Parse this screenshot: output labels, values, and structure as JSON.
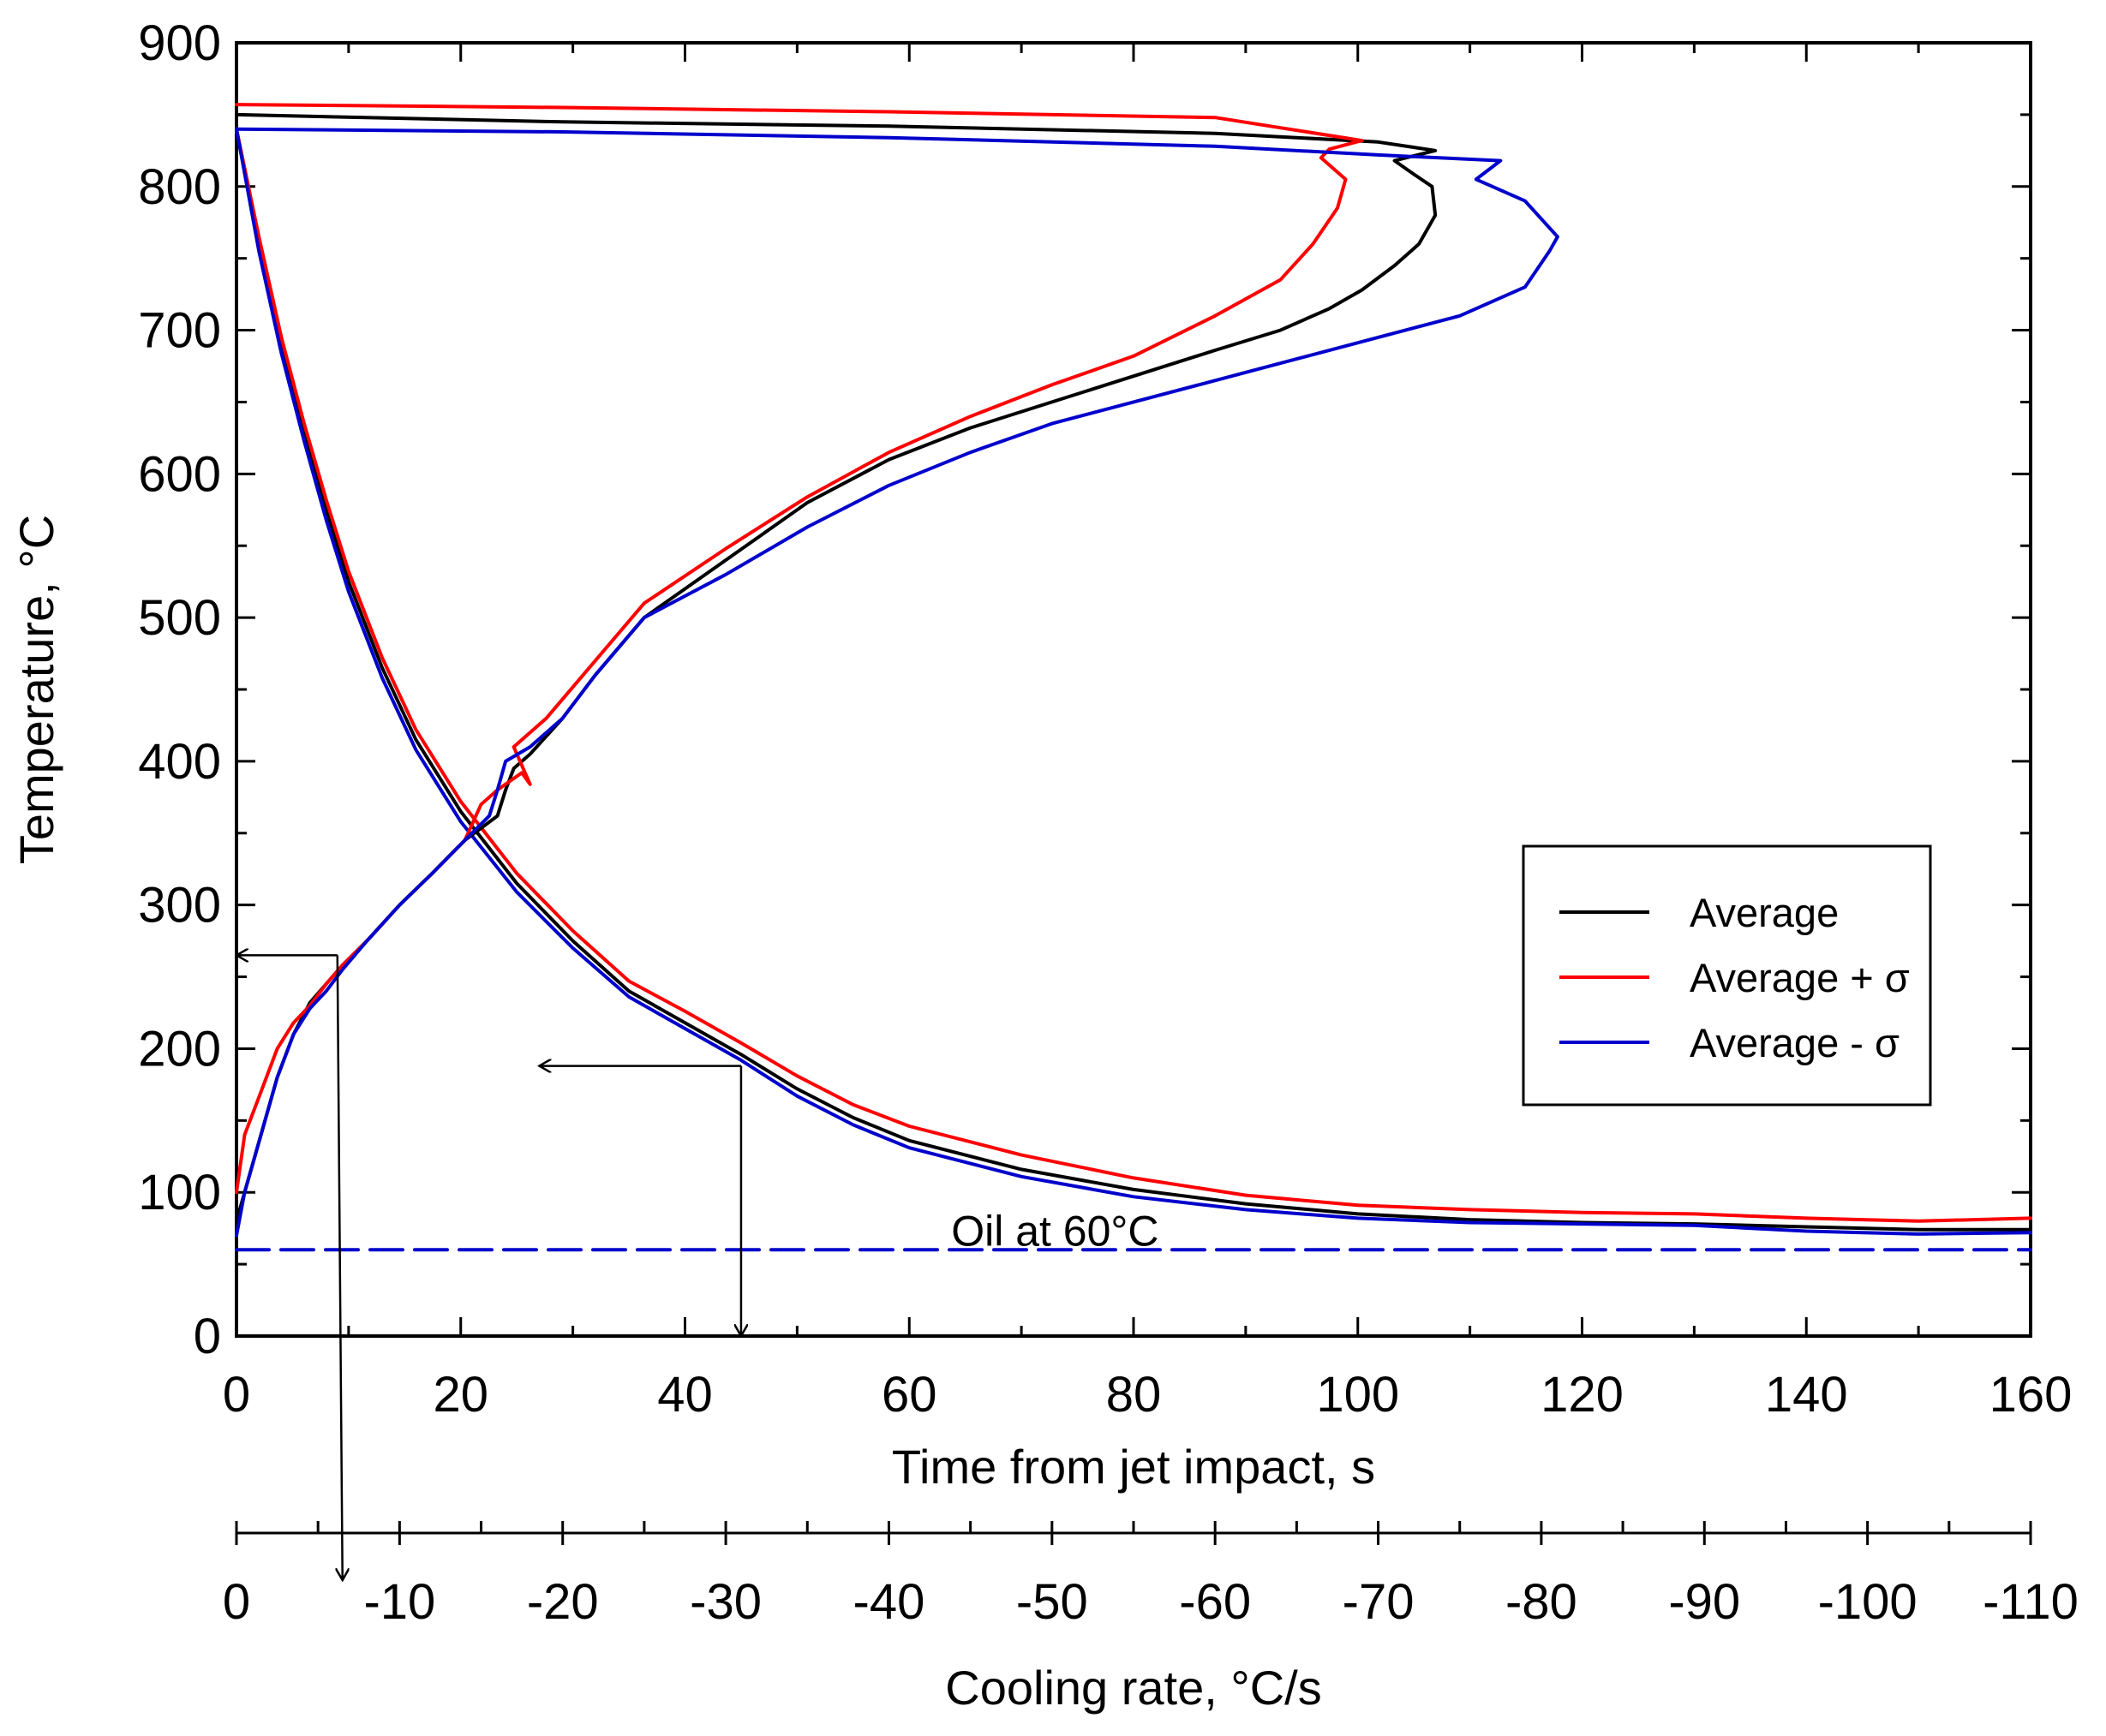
{
  "chart_data": {
    "type": "line",
    "title": "",
    "xlabel": "Time from jet impact, s",
    "x2label": "Cooling rate, °C/s",
    "ylabel": "Temperature, °C",
    "xlim": [
      0,
      160
    ],
    "x2lim": [
      0,
      -110
    ],
    "ylim": [
      0,
      900
    ],
    "x_ticks": [
      0,
      20,
      40,
      60,
      80,
      100,
      120,
      140,
      160
    ],
    "x2_ticks": [
      0,
      -10,
      -20,
      -30,
      -40,
      -50,
      -60,
      -70,
      -80,
      -90,
      -100,
      -110
    ],
    "y_ticks": [
      0,
      100,
      200,
      300,
      400,
      500,
      600,
      700,
      800,
      900
    ],
    "x_tick_labels": [
      "0",
      "20",
      "40",
      "60",
      "80",
      "100",
      "120",
      "140",
      "160"
    ],
    "x2_tick_labels": [
      "0",
      "-10",
      "-20",
      "-30",
      "-40",
      "-50",
      "-60",
      "-70",
      "-80",
      "-90",
      "-100",
      "-110"
    ],
    "y_tick_labels": [
      "0",
      "100",
      "200",
      "300",
      "400",
      "500",
      "600",
      "700",
      "800",
      "900"
    ],
    "grid": false,
    "legend_position": "right",
    "series": [
      {
        "name": "Average",
        "color": "#000000",
        "kind": "temperature-time",
        "x": [
          0,
          2,
          4,
          6,
          8,
          10,
          13,
          16,
          20,
          25,
          30,
          35,
          40,
          45,
          50,
          55,
          60,
          70,
          80,
          90,
          100,
          110,
          120,
          130,
          140,
          150,
          160
        ],
        "y": [
          840,
          760,
          690,
          630,
          575,
          525,
          465,
          415,
          365,
          315,
          275,
          240,
          218,
          196,
          172,
          152,
          136,
          116,
          102,
          92,
          85,
          81,
          79,
          78,
          76,
          74,
          74
        ]
      },
      {
        "name": "Average + σ",
        "color": "#ff0000",
        "kind": "temperature-time",
        "x": [
          0,
          2,
          4,
          6,
          8,
          10,
          13,
          16,
          20,
          25,
          30,
          35,
          40,
          45,
          50,
          55,
          60,
          70,
          80,
          90,
          100,
          110,
          120,
          130,
          140,
          150,
          160
        ],
        "y": [
          840,
          765,
          695,
          636,
          582,
          532,
          472,
          422,
          372,
          322,
          282,
          247,
          226,
          204,
          181,
          161,
          146,
          126,
          110,
          98,
          91,
          88,
          86,
          85,
          82,
          80,
          82
        ]
      },
      {
        "name": "Average - σ",
        "color": "#0000cc",
        "kind": "temperature-time",
        "x": [
          0,
          2,
          4,
          6,
          8,
          10,
          13,
          16,
          20,
          25,
          30,
          35,
          40,
          45,
          50,
          55,
          60,
          70,
          80,
          90,
          100,
          110,
          120,
          130,
          140,
          150,
          160
        ],
        "y": [
          840,
          755,
          684,
          624,
          568,
          518,
          458,
          408,
          358,
          309,
          270,
          236,
          214,
          192,
          167,
          147,
          131,
          111,
          97,
          88,
          82,
          79,
          78,
          77,
          73,
          71,
          72
        ]
      },
      {
        "name": "Average",
        "color": "#000000",
        "kind": "temperature-cooling-rate",
        "x": [
          0,
          -0.5,
          -1.5,
          -2.5,
          -3.5,
          -4.5,
          -5.5,
          -6.5,
          -8,
          -10,
          -12,
          -14,
          -16,
          -16.5,
          -17,
          -18,
          -20,
          -22,
          -25,
          -30,
          -35,
          -40,
          -45,
          -50,
          -55,
          -60,
          -64,
          -67,
          -69,
          -71,
          -72.5,
          -73.5,
          -73.3,
          -72,
          -71,
          -73.5,
          -70,
          -60,
          -40,
          -20,
          0
        ],
        "y": [
          80,
          100,
          140,
          180,
          210,
          232,
          245,
          258,
          275,
          300,
          322,
          345,
          362,
          380,
          395,
          405,
          430,
          460,
          500,
          540,
          580,
          610,
          632,
          650,
          668,
          686,
          700,
          715,
          728,
          745,
          760,
          780,
          800,
          810,
          818,
          825,
          831,
          837,
          842,
          845,
          850
        ]
      },
      {
        "name": "Average + σ",
        "color": "#ff0000",
        "kind": "temperature-cooling-rate",
        "x": [
          0,
          -0.5,
          -1.5,
          -2.5,
          -3.5,
          -4.5,
          -5.5,
          -6.5,
          -8,
          -10,
          -12,
          -14,
          -15,
          -16,
          -17.5,
          -18,
          -17,
          -19,
          -22,
          -25,
          -30,
          -35,
          -40,
          -45,
          -50,
          -55,
          -60,
          -64,
          -66,
          -67.5,
          -68,
          -66.5,
          -67,
          -69,
          -60,
          -40,
          -20,
          0
        ],
        "y": [
          100,
          140,
          170,
          200,
          218,
          230,
          245,
          258,
          275,
          300,
          322,
          345,
          370,
          380,
          392,
          384,
          410,
          430,
          470,
          510,
          548,
          584,
          615,
          640,
          662,
          682,
          710,
          735,
          760,
          785,
          805,
          820,
          826,
          832,
          848,
          852,
          855,
          857
        ]
      },
      {
        "name": "Average - σ",
        "color": "#0000cc",
        "kind": "temperature-cooling-rate",
        "x": [
          0,
          -0.5,
          -1.5,
          -2.5,
          -3.5,
          -4.5,
          -5.5,
          -6.5,
          -8,
          -10,
          -12,
          -14,
          -15.5,
          -16,
          -16.5,
          -18,
          -20,
          -22,
          -25,
          -30,
          -35,
          -40,
          -45,
          -50,
          -55,
          -60,
          -65,
          -70,
          -75,
          -79,
          -80.5,
          -81,
          -79,
          -76,
          -77.5,
          -70,
          -60,
          -40,
          -20,
          0
        ],
        "y": [
          70,
          100,
          140,
          180,
          210,
          228,
          240,
          255,
          275,
          300,
          322,
          345,
          362,
          380,
          400,
          410,
          430,
          460,
          500,
          530,
          563,
          592,
          615,
          635,
          650,
          665,
          680,
          695,
          710,
          730,
          755,
          765,
          790,
          805,
          818,
          822,
          828,
          834,
          838,
          840
        ]
      },
      {
        "name": "Oil at 60°C",
        "color": "#0000cc",
        "kind": "oil-temperature-reference",
        "dashed": true,
        "x": [
          0,
          160
        ],
        "y": [
          60,
          60
        ]
      }
    ],
    "legend": {
      "entries": [
        {
          "label": "Average",
          "color": "#000000"
        },
        {
          "label": "Average + σ",
          "color": "#ff0000"
        },
        {
          "label": "Average - σ",
          "color": "#0000cc"
        }
      ]
    },
    "annotations": [
      {
        "text": "Oil at 60°C",
        "x": 73,
        "y": 63
      }
    ],
    "read_arrows": [
      {
        "from_x": 9,
        "from_y": 265,
        "to_x": 0,
        "to_y": 265,
        "note": "arrow to temperature axis"
      },
      {
        "from_x": 9,
        "from_y": 265,
        "to_x2": -6.5,
        "note": "arrow down to cooling-rate axis"
      },
      {
        "from_x": 45,
        "from_y": 188,
        "to_x": 27,
        "to_y": 188,
        "note": "arrow to temperature axis"
      },
      {
        "from_x": 45,
        "from_y": 188,
        "to_x": 45,
        "to_y": 0,
        "note": "arrow down to time axis"
      }
    ]
  }
}
